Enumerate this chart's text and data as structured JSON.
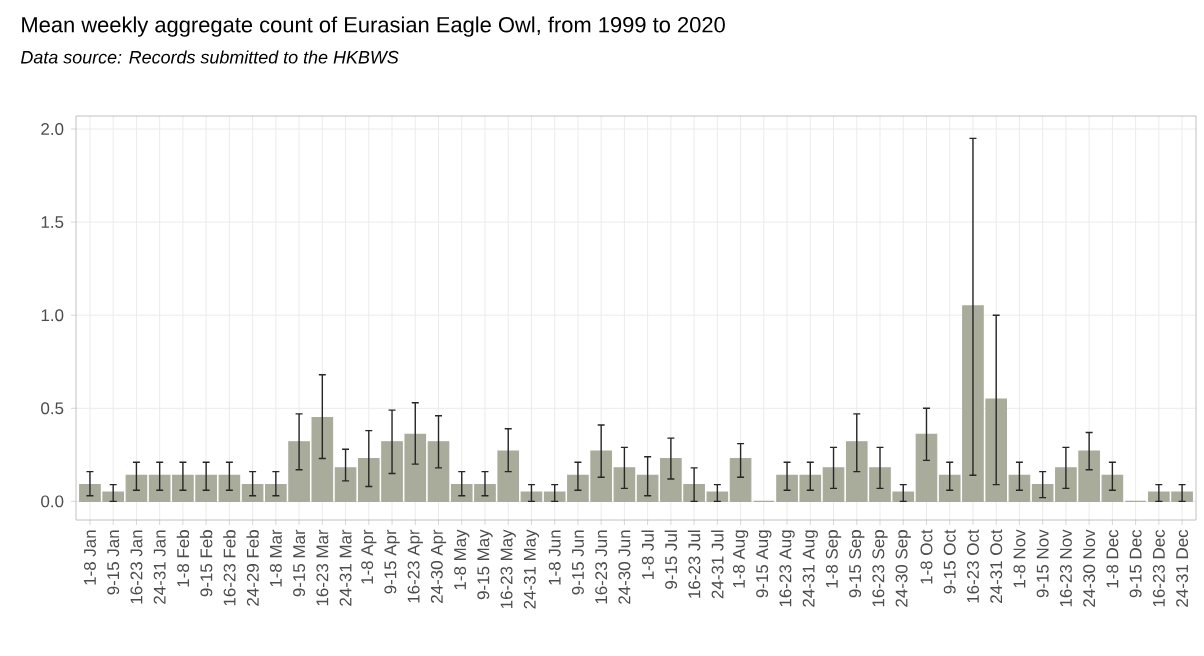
{
  "chart_data": {
    "type": "bar",
    "title": "Mean weekly aggregate count of Eurasian Eagle Owl, from 1999 to 2020",
    "subtitle": "*Data source: Records submitted to the HKBWS*",
    "categories": [
      "1-8 Jan",
      "9-15 Jan",
      "16-23 Jan",
      "24-31 Jan",
      "1-8 Feb",
      "9-15 Feb",
      "16-23 Feb",
      "24-29 Feb",
      "1-8 Mar",
      "9-15 Mar",
      "16-23 Mar",
      "24-31 Mar",
      "1-8 Apr",
      "9-15 Apr",
      "16-23 Apr",
      "24-30 Apr",
      "1-8 May",
      "9-15 May",
      "16-23 May",
      "24-31 May",
      "1-8 Jun",
      "9-15 Jun",
      "16-23 Jun",
      "24-30 Jun",
      "1-8 Jul",
      "9-15 Jul",
      "16-23 Jul",
      "24-31 Jul",
      "1-8 Aug",
      "9-15 Aug",
      "16-23 Aug",
      "24-31 Aug",
      "1-8 Sep",
      "9-15 Sep",
      "16-23 Sep",
      "24-30 Sep",
      "1-8 Oct",
      "9-15 Oct",
      "16-23 Oct",
      "24-31 Oct",
      "1-8 Nov",
      "9-15 Nov",
      "16-23 Nov",
      "24-30 Nov",
      "1-8 Dec",
      "9-15 Dec",
      "16-23 Dec",
      "24-31 Dec"
    ],
    "values": [
      0.09,
      0.05,
      0.14,
      0.14,
      0.14,
      0.14,
      0.14,
      0.09,
      0.09,
      0.32,
      0.45,
      0.18,
      0.23,
      0.32,
      0.36,
      0.32,
      0.09,
      0.09,
      0.27,
      0.05,
      0.05,
      0.14,
      0.27,
      0.18,
      0.14,
      0.23,
      0.09,
      0.05,
      0.23,
      0.0,
      0.14,
      0.14,
      0.18,
      0.32,
      0.18,
      0.05,
      0.36,
      0.14,
      1.05,
      0.55,
      0.14,
      0.09,
      0.18,
      0.27,
      0.14,
      0.0,
      0.05,
      0.05
    ],
    "errors": [
      [
        0.03,
        0.16
      ],
      [
        0.0,
        0.09
      ],
      [
        0.06,
        0.21
      ],
      [
        0.06,
        0.21
      ],
      [
        0.06,
        0.21
      ],
      [
        0.06,
        0.21
      ],
      [
        0.06,
        0.21
      ],
      [
        0.03,
        0.16
      ],
      [
        0.03,
        0.16
      ],
      [
        0.17,
        0.47
      ],
      [
        0.23,
        0.68
      ],
      [
        0.11,
        0.28
      ],
      [
        0.08,
        0.38
      ],
      [
        0.15,
        0.49
      ],
      [
        0.2,
        0.53
      ],
      [
        0.18,
        0.46
      ],
      [
        0.03,
        0.16
      ],
      [
        0.03,
        0.16
      ],
      [
        0.16,
        0.39
      ],
      [
        0.0,
        0.09
      ],
      [
        0.0,
        0.09
      ],
      [
        0.06,
        0.21
      ],
      [
        0.13,
        0.41
      ],
      [
        0.07,
        0.29
      ],
      [
        0.03,
        0.24
      ],
      [
        0.12,
        0.34
      ],
      [
        0.0,
        0.18
      ],
      [
        0.0,
        0.09
      ],
      [
        0.13,
        0.31
      ],
      null,
      [
        0.06,
        0.21
      ],
      [
        0.06,
        0.21
      ],
      [
        0.07,
        0.29
      ],
      [
        0.16,
        0.47
      ],
      [
        0.07,
        0.29
      ],
      [
        0.0,
        0.09
      ],
      [
        0.22,
        0.5
      ],
      [
        0.06,
        0.21
      ],
      [
        0.14,
        1.95
      ],
      [
        0.09,
        1.0
      ],
      [
        0.06,
        0.21
      ],
      [
        0.02,
        0.16
      ],
      [
        0.07,
        0.29
      ],
      [
        0.17,
        0.37
      ],
      [
        0.06,
        0.21
      ],
      null,
      [
        0.0,
        0.09
      ],
      [
        0.0,
        0.09
      ]
    ],
    "color": "#a9ab9b",
    "ylim": [
      -0.1,
      2.07
    ],
    "yticks": [
      {
        "value": 0,
        "label": "0.0"
      },
      {
        "value": 0.5,
        "label": "0.5"
      },
      {
        "value": 1,
        "label": "1.0"
      },
      {
        "value": 1.5,
        "label": "1.5"
      },
      {
        "value": 2,
        "label": "2.0"
      }
    ],
    "grid": true
  }
}
